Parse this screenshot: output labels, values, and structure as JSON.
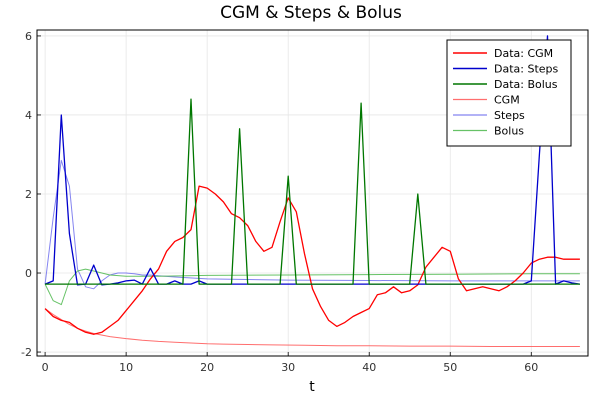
{
  "chart_data": {
    "type": "line",
    "title": "CGM & Steps & Bolus",
    "xlabel": "t",
    "ylabel": "",
    "xlim": [
      -1,
      67
    ],
    "ylim": [
      -2.1,
      6.15
    ],
    "x_ticks": [
      0,
      10,
      20,
      30,
      40,
      50,
      60
    ],
    "y_ticks": [
      -2,
      0,
      2,
      4,
      6
    ],
    "grid": true,
    "legend_position": "top-right",
    "series": [
      {
        "name": "Data: CGM",
        "color": "#ff0000",
        "width": 1.3,
        "opacity": 1,
        "x": [
          0,
          1,
          2,
          3,
          4,
          5,
          6,
          7,
          8,
          9,
          10,
          11,
          12,
          13,
          14,
          15,
          16,
          17,
          18,
          19,
          20,
          21,
          22,
          23,
          24,
          25,
          26,
          27,
          28,
          29,
          30,
          31,
          32,
          33,
          34,
          35,
          36,
          37,
          38,
          39,
          40,
          41,
          42,
          43,
          44,
          45,
          46,
          47,
          48,
          49,
          50,
          51,
          52,
          53,
          54,
          55,
          56,
          57,
          58,
          59,
          60,
          61,
          62,
          63,
          64,
          65,
          66
        ],
        "y": [
          -0.9,
          -1.1,
          -1.2,
          -1.25,
          -1.4,
          -1.5,
          -1.55,
          -1.5,
          -1.35,
          -1.2,
          -0.95,
          -0.7,
          -0.45,
          -0.15,
          0.1,
          0.55,
          0.8,
          0.9,
          1.1,
          2.2,
          2.15,
          2.0,
          1.8,
          1.5,
          1.4,
          1.2,
          0.8,
          0.55,
          0.65,
          1.3,
          1.9,
          1.55,
          0.5,
          -0.4,
          -0.85,
          -1.2,
          -1.35,
          -1.25,
          -1.1,
          -1.0,
          -0.9,
          -0.55,
          -0.5,
          -0.35,
          -0.5,
          -0.45,
          -0.3,
          0.15,
          0.4,
          0.65,
          0.55,
          -0.15,
          -0.45,
          -0.4,
          -0.35,
          -0.4,
          -0.45,
          -0.35,
          -0.2,
          0.0,
          0.25,
          0.35,
          0.4,
          0.4,
          0.35,
          0.35,
          0.35
        ]
      },
      {
        "name": "Data: Steps",
        "color": "#0000cc",
        "width": 1.3,
        "opacity": 1,
        "x": [
          0,
          1,
          2,
          3,
          4,
          5,
          6,
          7,
          8,
          9,
          10,
          11,
          12,
          13,
          14,
          15,
          16,
          17,
          18,
          19,
          20,
          21,
          22,
          23,
          24,
          25,
          26,
          27,
          28,
          29,
          30,
          31,
          32,
          33,
          34,
          35,
          36,
          37,
          38,
          39,
          40,
          41,
          42,
          43,
          44,
          45,
          46,
          47,
          48,
          49,
          50,
          51,
          52,
          53,
          54,
          55,
          56,
          57,
          58,
          59,
          60,
          61,
          62,
          63,
          64,
          65,
          66
        ],
        "y": [
          -0.28,
          -0.2,
          4.0,
          1.0,
          -0.3,
          -0.28,
          0.2,
          -0.3,
          -0.28,
          -0.25,
          -0.2,
          -0.18,
          -0.28,
          0.12,
          -0.28,
          -0.28,
          -0.2,
          -0.28,
          -0.28,
          -0.2,
          -0.28,
          -0.28,
          -0.28,
          -0.28,
          -0.28,
          -0.28,
          -0.28,
          -0.28,
          -0.28,
          -0.28,
          -0.28,
          -0.28,
          -0.28,
          -0.28,
          -0.28,
          -0.28,
          -0.28,
          -0.28,
          -0.28,
          -0.28,
          -0.28,
          -0.28,
          -0.28,
          -0.28,
          -0.28,
          -0.28,
          -0.28,
          -0.28,
          -0.28,
          -0.28,
          -0.28,
          -0.28,
          -0.28,
          -0.28,
          -0.28,
          -0.28,
          -0.28,
          -0.28,
          -0.28,
          -0.28,
          -0.2,
          3.0,
          6.0,
          -0.28,
          -0.2,
          -0.25,
          -0.28
        ]
      },
      {
        "name": "Data: Bolus",
        "color": "#007700",
        "width": 1.3,
        "opacity": 1,
        "x": [
          0,
          1,
          2,
          3,
          4,
          5,
          6,
          7,
          8,
          9,
          10,
          11,
          12,
          13,
          14,
          15,
          16,
          17,
          18,
          19,
          20,
          21,
          22,
          23,
          24,
          25,
          26,
          27,
          28,
          29,
          30,
          31,
          32,
          33,
          34,
          35,
          36,
          37,
          38,
          39,
          40,
          41,
          42,
          43,
          44,
          45,
          46,
          47,
          48,
          49,
          50,
          51,
          52,
          53,
          54,
          55,
          56,
          57,
          58,
          59,
          60,
          61,
          62,
          63,
          64,
          65,
          66
        ],
        "y": [
          -0.28,
          -0.28,
          -0.28,
          -0.28,
          -0.28,
          -0.28,
          -0.28,
          -0.28,
          -0.28,
          -0.28,
          -0.28,
          -0.28,
          -0.28,
          -0.28,
          -0.28,
          -0.28,
          -0.28,
          -0.28,
          4.4,
          -0.28,
          -0.28,
          -0.28,
          -0.28,
          -0.28,
          3.65,
          -0.28,
          -0.28,
          -0.28,
          -0.28,
          -0.28,
          2.45,
          -0.28,
          -0.28,
          -0.28,
          -0.28,
          -0.28,
          -0.28,
          -0.28,
          -0.28,
          4.3,
          -0.28,
          -0.28,
          -0.28,
          -0.28,
          -0.28,
          -0.28,
          2.0,
          -0.28,
          -0.28,
          -0.28,
          -0.28,
          -0.28,
          -0.28,
          -0.28,
          -0.28,
          -0.28,
          -0.28,
          -0.28,
          -0.28,
          -0.28,
          -0.28,
          -0.28,
          -0.28,
          -0.28,
          -0.28,
          -0.28,
          -0.28
        ]
      },
      {
        "name": "CGM",
        "color": "#ff5555",
        "width": 1,
        "opacity": 0.85,
        "x": [
          0,
          1,
          2,
          3,
          4,
          5,
          6,
          8,
          10,
          12,
          14,
          16,
          18,
          20,
          22,
          25,
          28,
          32,
          36,
          40,
          45,
          50,
          55,
          60,
          66
        ],
        "y": [
          -0.9,
          -1.05,
          -1.18,
          -1.3,
          -1.4,
          -1.47,
          -1.53,
          -1.61,
          -1.66,
          -1.7,
          -1.73,
          -1.75,
          -1.77,
          -1.79,
          -1.8,
          -1.81,
          -1.82,
          -1.83,
          -1.84,
          -1.84,
          -1.85,
          -1.85,
          -1.86,
          -1.86,
          -1.86
        ]
      },
      {
        "name": "Steps",
        "color": "#7777ee",
        "width": 1,
        "opacity": 0.9,
        "x": [
          0,
          1,
          2,
          3,
          4,
          5,
          6,
          7,
          8,
          9,
          10,
          11,
          12,
          13,
          14,
          16,
          20,
          30,
          40,
          50,
          60,
          66
        ],
        "y": [
          -0.28,
          1.4,
          2.85,
          2.2,
          0.1,
          -0.35,
          -0.4,
          -0.2,
          -0.05,
          0.0,
          0.0,
          -0.02,
          -0.05,
          -0.05,
          -0.07,
          -0.1,
          -0.15,
          -0.18,
          -0.19,
          -0.2,
          -0.2,
          -0.2
        ]
      },
      {
        "name": "Bolus",
        "color": "#55bb55",
        "width": 1,
        "opacity": 0.9,
        "x": [
          0,
          1,
          2,
          3,
          4,
          5,
          6,
          8,
          10,
          14,
          20,
          30,
          40,
          50,
          60,
          66
        ],
        "y": [
          -0.28,
          -0.7,
          -0.8,
          -0.2,
          0.05,
          0.1,
          0.05,
          -0.05,
          -0.08,
          -0.08,
          -0.06,
          -0.05,
          -0.04,
          -0.03,
          -0.02,
          -0.02
        ]
      }
    ]
  }
}
